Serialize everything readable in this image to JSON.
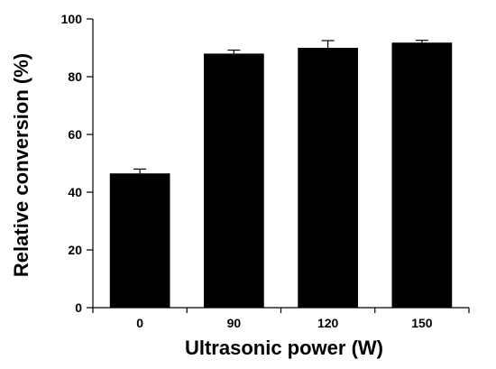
{
  "chart_data": {
    "type": "bar",
    "categories": [
      "0",
      "90",
      "120",
      "150"
    ],
    "values": [
      46.5,
      88,
      90,
      91.8
    ],
    "errors": [
      1.5,
      1.2,
      2.5,
      0.8
    ],
    "xlabel": "Ultrasonic power (W)",
    "ylabel": "Relative conversion (%)",
    "ylim": [
      0,
      100
    ],
    "yticks": [
      0,
      20,
      40,
      60,
      80,
      100
    ],
    "grid": false,
    "bar_color": "#000000"
  }
}
